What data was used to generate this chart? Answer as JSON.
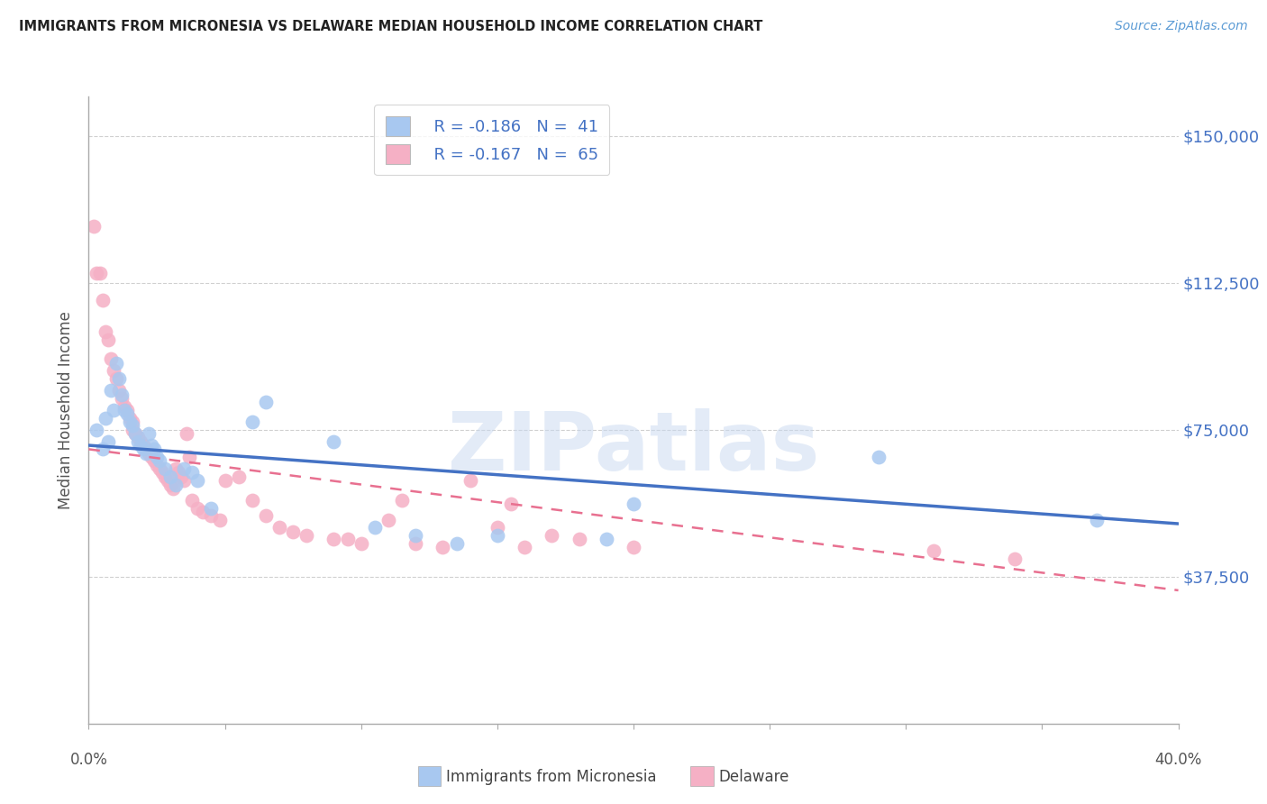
{
  "title": "IMMIGRANTS FROM MICRONESIA VS DELAWARE MEDIAN HOUSEHOLD INCOME CORRELATION CHART",
  "source": "Source: ZipAtlas.com",
  "ylabel": "Median Household Income",
  "y_ticks": [
    37500,
    75000,
    112500,
    150000
  ],
  "y_tick_labels": [
    "$37,500",
    "$75,000",
    "$112,500",
    "$150,000"
  ],
  "x_min": 0.0,
  "x_max": 0.4,
  "y_min": 0,
  "y_max": 160000,
  "legend_blue_r": "R = -0.186",
  "legend_blue_n": "N =  41",
  "legend_pink_r": "R = -0.167",
  "legend_pink_n": "N =  65",
  "watermark": "ZIPatlas",
  "blue_color": "#a8c8f0",
  "pink_color": "#f5b0c5",
  "blue_line_color": "#4472c4",
  "pink_line_color": "#e87090",
  "blue_scatter_x": [
    0.003,
    0.005,
    0.006,
    0.007,
    0.008,
    0.009,
    0.01,
    0.011,
    0.012,
    0.013,
    0.014,
    0.015,
    0.016,
    0.017,
    0.018,
    0.019,
    0.02,
    0.021,
    0.022,
    0.023,
    0.024,
    0.025,
    0.026,
    0.028,
    0.03,
    0.032,
    0.035,
    0.038,
    0.04,
    0.045,
    0.06,
    0.065,
    0.09,
    0.105,
    0.12,
    0.135,
    0.15,
    0.19,
    0.2,
    0.29,
    0.37
  ],
  "blue_scatter_y": [
    75000,
    70000,
    78000,
    72000,
    85000,
    80000,
    92000,
    88000,
    84000,
    80000,
    79000,
    77000,
    76000,
    74000,
    72000,
    71000,
    70000,
    69000,
    74000,
    71000,
    70000,
    68000,
    67000,
    65000,
    63000,
    61000,
    65000,
    64000,
    62000,
    55000,
    77000,
    82000,
    72000,
    50000,
    48000,
    46000,
    48000,
    47000,
    56000,
    68000,
    52000
  ],
  "pink_scatter_x": [
    0.002,
    0.003,
    0.004,
    0.005,
    0.006,
    0.007,
    0.008,
    0.009,
    0.01,
    0.011,
    0.012,
    0.013,
    0.014,
    0.015,
    0.016,
    0.016,
    0.017,
    0.018,
    0.019,
    0.02,
    0.021,
    0.022,
    0.023,
    0.024,
    0.025,
    0.026,
    0.027,
    0.028,
    0.029,
    0.03,
    0.031,
    0.032,
    0.033,
    0.034,
    0.035,
    0.036,
    0.037,
    0.038,
    0.04,
    0.042,
    0.045,
    0.048,
    0.05,
    0.055,
    0.06,
    0.065,
    0.07,
    0.075,
    0.08,
    0.09,
    0.095,
    0.1,
    0.11,
    0.115,
    0.12,
    0.13,
    0.14,
    0.15,
    0.155,
    0.16,
    0.17,
    0.18,
    0.2,
    0.31,
    0.34
  ],
  "pink_scatter_y": [
    127000,
    115000,
    115000,
    108000,
    100000,
    98000,
    93000,
    90000,
    88000,
    85000,
    83000,
    81000,
    80000,
    78000,
    77000,
    75000,
    74000,
    73000,
    72000,
    71000,
    70000,
    69000,
    68000,
    67000,
    66000,
    65000,
    64000,
    63000,
    62000,
    61000,
    60000,
    65000,
    64000,
    63000,
    62000,
    74000,
    68000,
    57000,
    55000,
    54000,
    53000,
    52000,
    62000,
    63000,
    57000,
    53000,
    50000,
    49000,
    48000,
    47000,
    47000,
    46000,
    52000,
    57000,
    46000,
    45000,
    62000,
    50000,
    56000,
    45000,
    48000,
    47000,
    45000,
    44000,
    42000
  ],
  "blue_trend_x": [
    0.0,
    0.4
  ],
  "blue_trend_y": [
    71000,
    51000
  ],
  "pink_trend_x": [
    0.0,
    0.4
  ],
  "pink_trend_y": [
    70000,
    34000
  ],
  "x_tick_positions": [
    0.0,
    0.05,
    0.1,
    0.15,
    0.2,
    0.25,
    0.3,
    0.35,
    0.4
  ]
}
